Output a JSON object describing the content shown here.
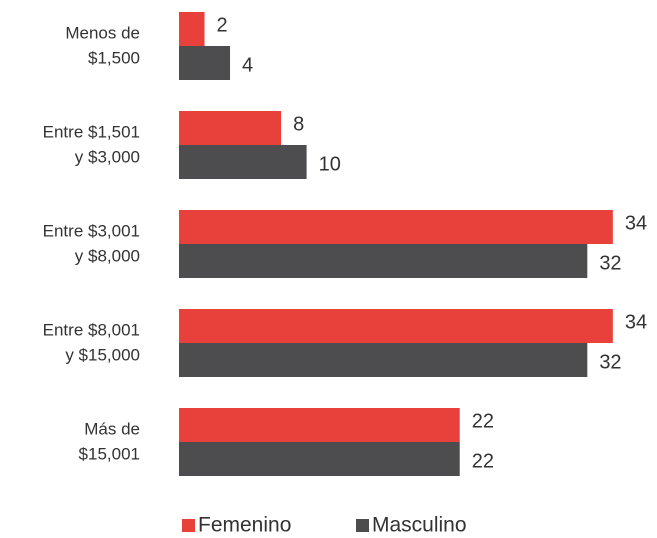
{
  "chart_data": {
    "type": "bar",
    "orientation": "horizontal",
    "categories": [
      [
        "Menos de",
        "$1,500"
      ],
      [
        "Entre $1,501",
        "y $3,000"
      ],
      [
        "Entre $3,001",
        "y $8,000"
      ],
      [
        "Entre $8,001",
        "y $15,000"
      ],
      [
        "Más de",
        "$15,001"
      ]
    ],
    "series": [
      {
        "name": "Femenino",
        "color": "#e8403a",
        "values": [
          2,
          8,
          34,
          34,
          22
        ]
      },
      {
        "name": "Masculino",
        "color": "#4d4d4f",
        "values": [
          4,
          10,
          32,
          32,
          22
        ]
      }
    ]
  }
}
